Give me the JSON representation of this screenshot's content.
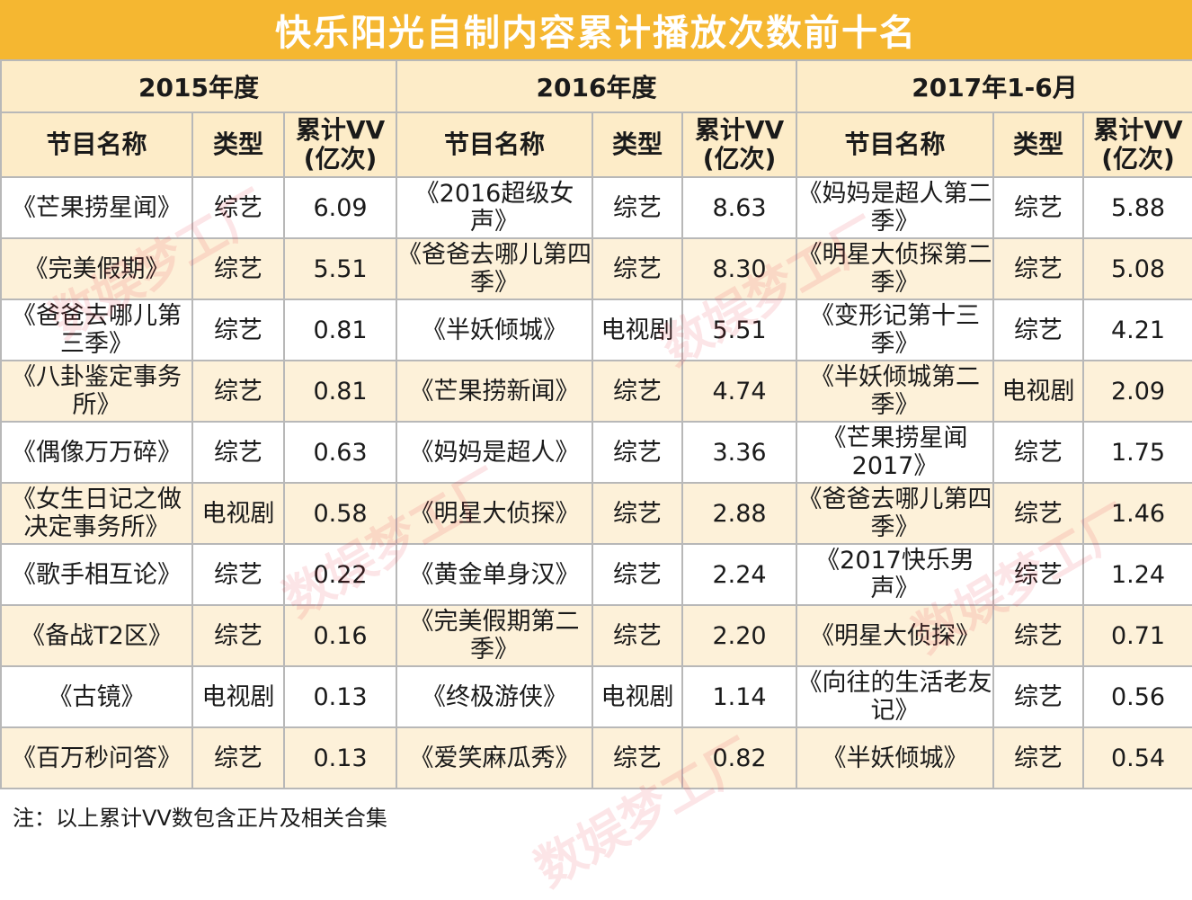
{
  "title": "快乐阳光自制内容累计播放次数前十名",
  "periods": [
    "2015年度",
    "2016年度",
    "2017年1-6月"
  ],
  "columns": [
    "节目名称",
    "类型",
    "累计VV\n(亿次)"
  ],
  "rows": [
    [
      [
        "《芒果捞星闻》",
        "综艺",
        "6.09"
      ],
      [
        "《2016超级女声》",
        "综艺",
        "8.63"
      ],
      [
        "《妈妈是超人第二季》",
        "综艺",
        "5.88"
      ]
    ],
    [
      [
        "《完美假期》",
        "综艺",
        "5.51"
      ],
      [
        "《爸爸去哪儿第四季》",
        "综艺",
        "8.30"
      ],
      [
        "《明星大侦探第二季》",
        "综艺",
        "5.08"
      ]
    ],
    [
      [
        "《爸爸去哪儿第三季》",
        "综艺",
        "0.81"
      ],
      [
        "《半妖倾城》",
        "电视剧",
        "5.51"
      ],
      [
        "《变形记第十三季》",
        "综艺",
        "4.21"
      ]
    ],
    [
      [
        "《八卦鉴定事务所》",
        "综艺",
        "0.81"
      ],
      [
        "《芒果捞新闻》",
        "综艺",
        "4.74"
      ],
      [
        "《半妖倾城第二季》",
        "电视剧",
        "2.09"
      ]
    ],
    [
      [
        "《偶像万万碎》",
        "综艺",
        "0.63"
      ],
      [
        "《妈妈是超人》",
        "综艺",
        "3.36"
      ],
      [
        "《芒果捞星闻2017》",
        "综艺",
        "1.75"
      ]
    ],
    [
      [
        "《女生日记之做决定事务所》",
        "电视剧",
        "0.58"
      ],
      [
        "《明星大侦探》",
        "综艺",
        "2.88"
      ],
      [
        "《爸爸去哪儿第四季》",
        "综艺",
        "1.46"
      ]
    ],
    [
      [
        "《歌手相互论》",
        "综艺",
        "0.22"
      ],
      [
        "《黄金单身汉》",
        "综艺",
        "2.24"
      ],
      [
        "《2017快乐男声》",
        "综艺",
        "1.24"
      ]
    ],
    [
      [
        "《备战T2区》",
        "综艺",
        "0.16"
      ],
      [
        "《完美假期第二季》",
        "综艺",
        "2.20"
      ],
      [
        "《明星大侦探》",
        "综艺",
        "0.71"
      ]
    ],
    [
      [
        "《古镜》",
        "电视剧",
        "0.13"
      ],
      [
        "《终极游侠》",
        "电视剧",
        "1.14"
      ],
      [
        "《向往的生活老友记》",
        "综艺",
        "0.56"
      ]
    ],
    [
      [
        "《百万秒问答》",
        "综艺",
        "0.13"
      ],
      [
        "《爱笑麻瓜秀》",
        "综艺",
        "0.82"
      ],
      [
        "《半妖倾城》",
        "综艺",
        "0.54"
      ]
    ]
  ],
  "note": "注：以上累计VV数包含正片及相关合集",
  "watermark": "数娱梦工厂",
  "colors": {
    "title_bg": "#f5b731",
    "header_bg": "#fdecc8",
    "alt_row_bg": "#fdf1d9"
  }
}
